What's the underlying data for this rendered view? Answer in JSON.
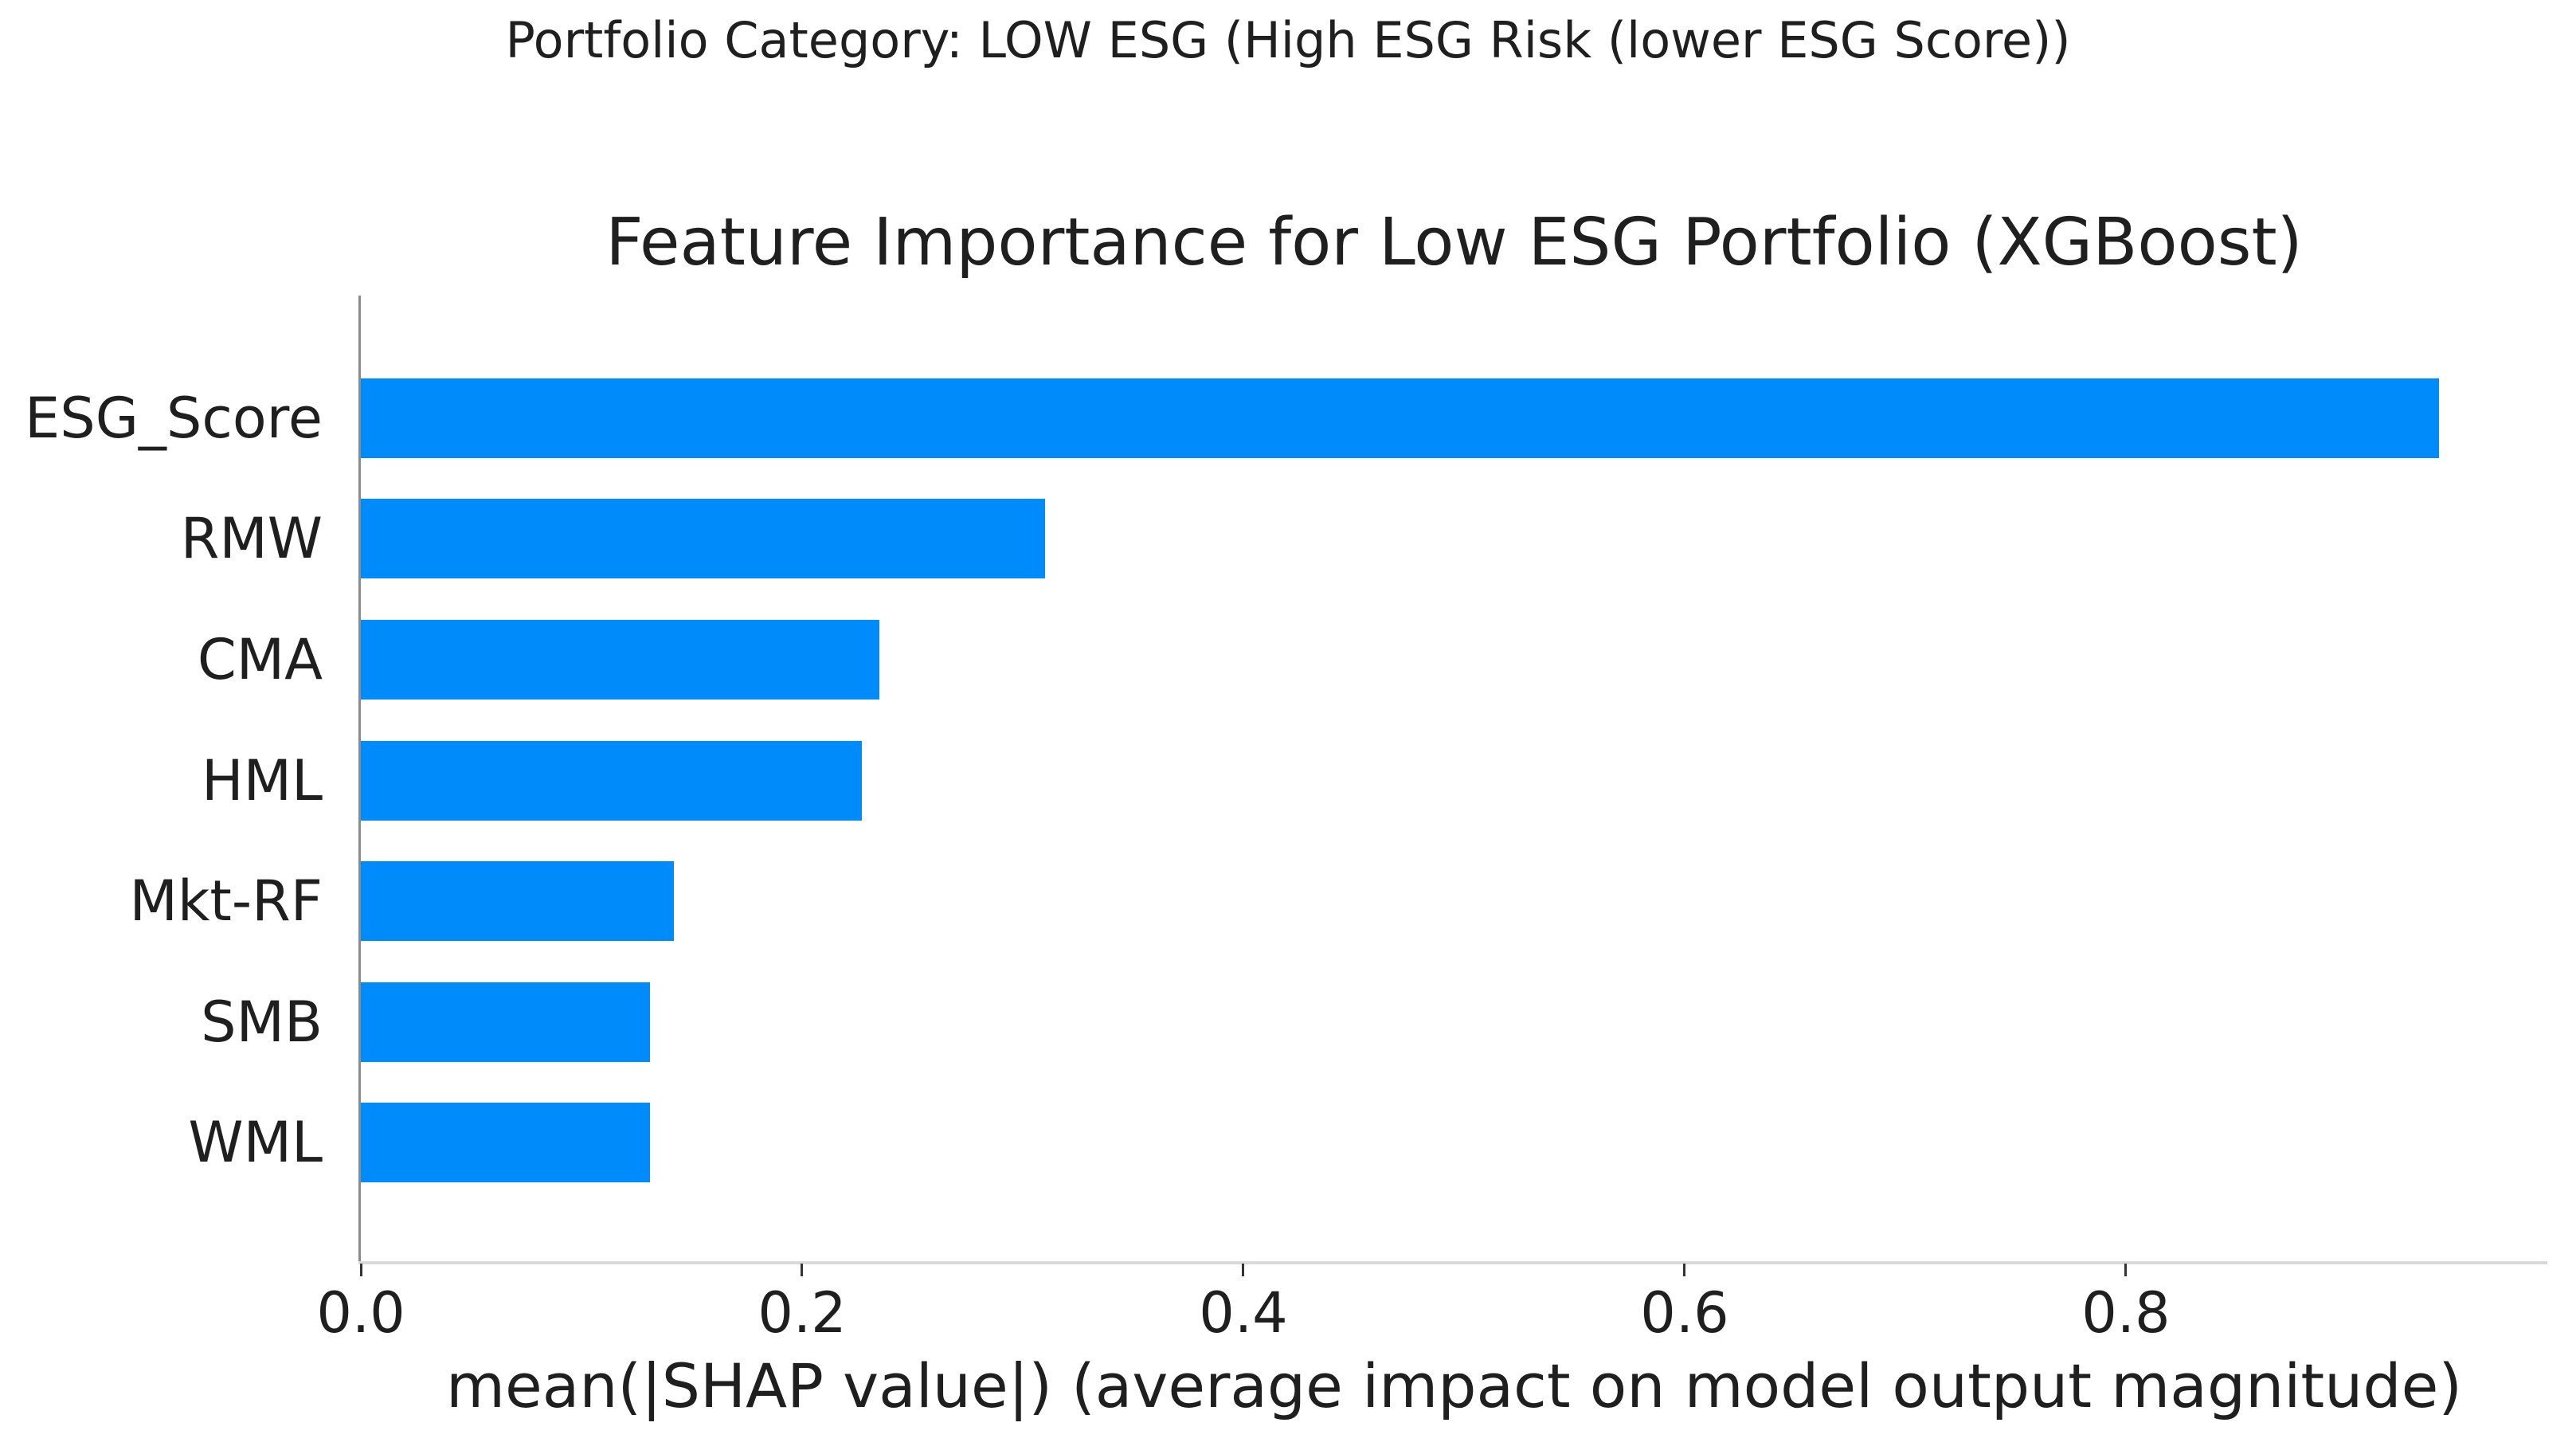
{
  "captions": {
    "top": "Portfolio Category: LOW ESG (High ESG Risk (lower ESG Score))"
  },
  "chart": {
    "title": "Feature Importance for Low ESG Portfolio (XGBoost)",
    "xlabel": "mean(|SHAP value|) (average impact on model output magnitude)"
  },
  "chart_data": {
    "type": "bar",
    "orientation": "horizontal",
    "title": "Feature Importance for Low ESG Portfolio (XGBoost)",
    "suptitle": "Portfolio Category: LOW ESG (High ESG Risk (lower ESG Score))",
    "xlabel": "mean(|SHAP value|) (average impact on model output magnitude)",
    "ylabel": "",
    "categories": [
      "ESG_Score",
      "RMW",
      "CMA",
      "HML",
      "Mkt-RF",
      "SMB",
      "WML"
    ],
    "values": [
      0.942,
      0.31,
      0.235,
      0.227,
      0.142,
      0.131,
      0.131
    ],
    "xticks": [
      "0.0",
      "0.2",
      "0.4",
      "0.6",
      "0.8"
    ],
    "xtick_values": [
      0.0,
      0.2,
      0.4,
      0.6,
      0.8
    ],
    "xlim": [
      0,
      0.991
    ],
    "grid": false,
    "legend": null,
    "bar_color": "#008bfb"
  },
  "colors": {
    "bar": "#008bfb",
    "text": "#1f1f1f",
    "left_spine": "#8c8c8c",
    "bottom_spine": "#d9d9d9",
    "tick_mark": "#333333",
    "background": "#ffffff"
  }
}
